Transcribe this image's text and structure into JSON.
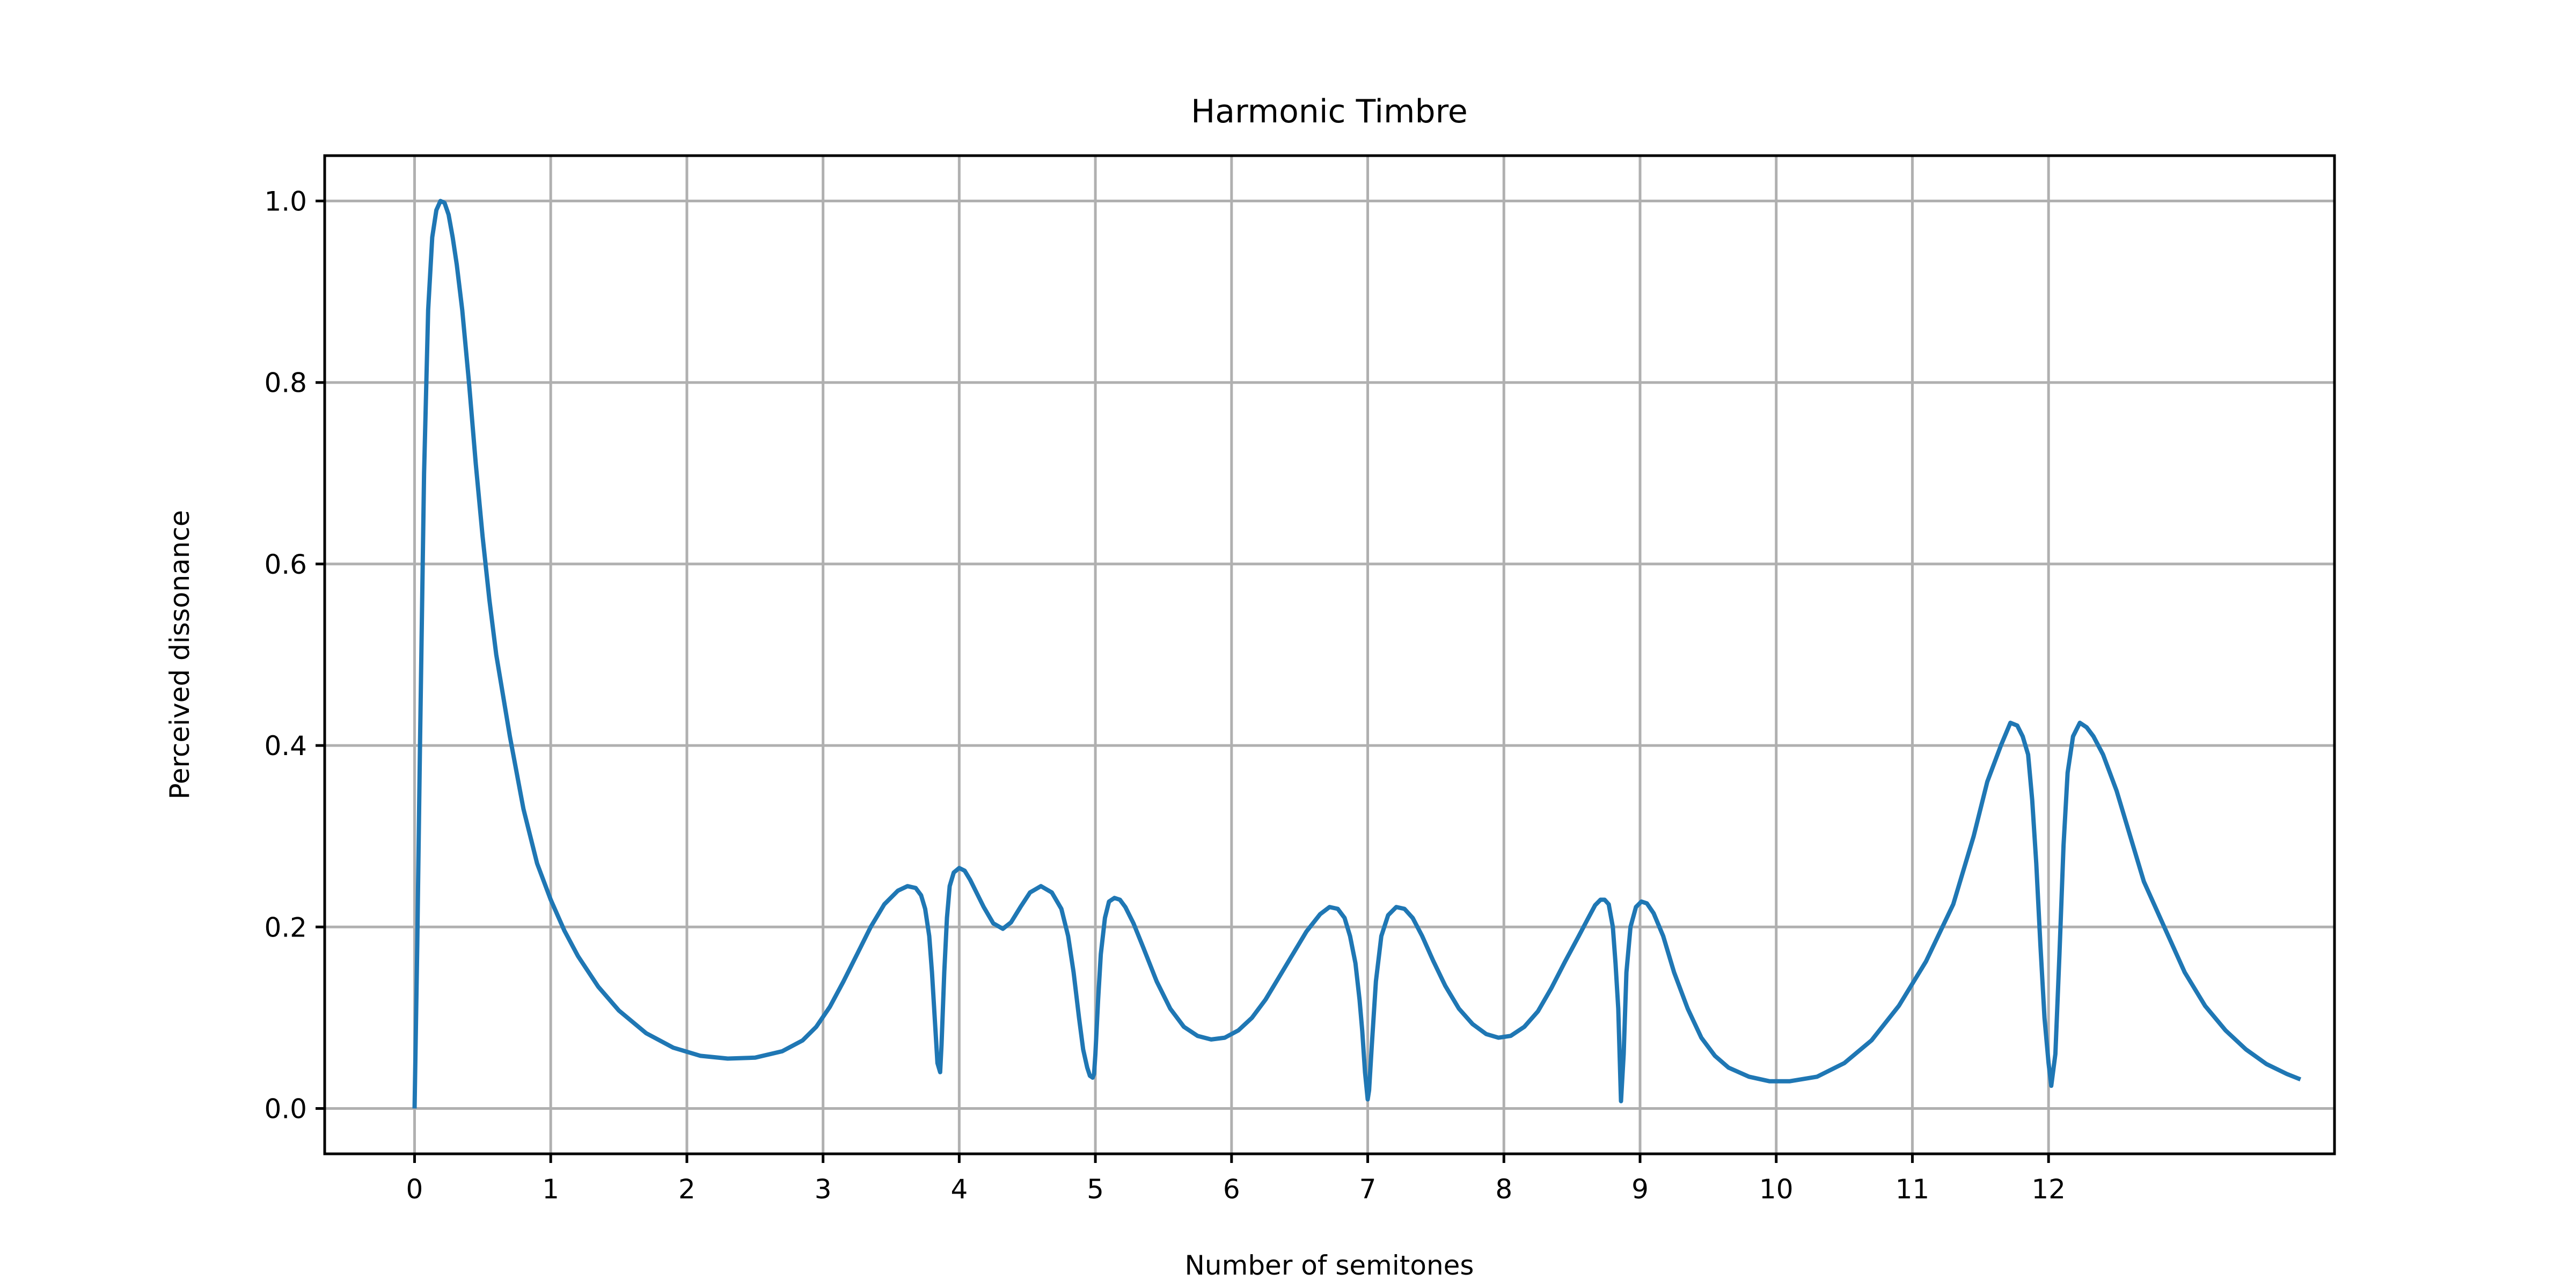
{
  "chart_data": {
    "type": "line",
    "title": "Harmonic Timbre",
    "xlabel": "Number of semitones",
    "ylabel": "Perceived dissonance",
    "xlim": [
      -0.66,
      14.1
    ],
    "ylim": [
      -0.05,
      1.05
    ],
    "x_ticks": [
      0,
      1,
      2,
      3,
      4,
      5,
      6,
      7,
      8,
      9,
      10,
      11,
      12
    ],
    "x_tick_labels": [
      "0",
      "1",
      "2",
      "3",
      "4",
      "5",
      "6",
      "7",
      "8",
      "9",
      "10",
      "11",
      "12"
    ],
    "y_ticks": [
      0.0,
      0.2,
      0.4,
      0.6,
      0.8,
      1.0
    ],
    "y_tick_labels": [
      "0.0",
      "0.2",
      "0.4",
      "0.6",
      "0.8",
      "1.0"
    ],
    "grid": true,
    "series_color": "#1f77b4",
    "series": [
      {
        "x": [
          0,
          0.02,
          0.04,
          0.07,
          0.1,
          0.13,
          0.16,
          0.19,
          0.22,
          0.25,
          0.28,
          0.31,
          0.35,
          0.4,
          0.45,
          0.5,
          0.55,
          0.6,
          0.7,
          0.8,
          0.9,
          1.0,
          1.1,
          1.2,
          1.35,
          1.5,
          1.7,
          1.9,
          2.1,
          2.3,
          2.5,
          2.7,
          2.85,
          2.95,
          3.05,
          3.15,
          3.25,
          3.35,
          3.45,
          3.55,
          3.62,
          3.68,
          3.72,
          3.75,
          3.78,
          3.8,
          3.82,
          3.84,
          3.86,
          3.87,
          3.89,
          3.91,
          3.93,
          3.96,
          4.0,
          4.04,
          4.08,
          4.12,
          4.18,
          4.25,
          4.32,
          4.38,
          4.45,
          4.52,
          4.6,
          4.68,
          4.75,
          4.8,
          4.84,
          4.88,
          4.91,
          4.94,
          4.96,
          4.98,
          4.99,
          5.0,
          5.02,
          5.04,
          5.07,
          5.1,
          5.14,
          5.18,
          5.22,
          5.28,
          5.35,
          5.45,
          5.55,
          5.65,
          5.75,
          5.85,
          5.95,
          6.05,
          6.15,
          6.25,
          6.35,
          6.45,
          6.55,
          6.65,
          6.72,
          6.78,
          6.83,
          6.87,
          6.91,
          6.94,
          6.96,
          6.98,
          7.0,
          7.01,
          7.03,
          7.06,
          7.1,
          7.15,
          7.21,
          7.27,
          7.33,
          7.4,
          7.48,
          7.57,
          7.67,
          7.77,
          7.87,
          7.96,
          8.05,
          8.15,
          8.25,
          8.35,
          8.45,
          8.55,
          8.62,
          8.67,
          8.71,
          8.74,
          8.77,
          8.8,
          8.82,
          8.84,
          8.85,
          8.86,
          8.88,
          8.9,
          8.93,
          8.97,
          9.01,
          9.05,
          9.1,
          9.17,
          9.25,
          9.35,
          9.45,
          9.55,
          9.65,
          9.8,
          9.95,
          10.1,
          10.3,
          10.5,
          10.7,
          10.9,
          11.1,
          11.3,
          11.45,
          11.55,
          11.65,
          11.72,
          11.77,
          11.81,
          11.85,
          11.88,
          11.91,
          11.94,
          11.97,
          12.0,
          12.02,
          12.05,
          12.08,
          12.11,
          12.14,
          12.18,
          12.23,
          12.28,
          12.33,
          12.4,
          12.5,
          12.6,
          12.7,
          12.85,
          13.0,
          13.15,
          13.3,
          13.45,
          13.6,
          13.75,
          13.85
        ],
        "values": [
          0.0,
          0.18,
          0.4,
          0.7,
          0.88,
          0.96,
          0.99,
          1.0,
          0.998,
          0.985,
          0.96,
          0.93,
          0.88,
          0.8,
          0.71,
          0.63,
          0.56,
          0.5,
          0.41,
          0.33,
          0.27,
          0.23,
          0.196,
          0.168,
          0.134,
          0.108,
          0.083,
          0.067,
          0.058,
          0.055,
          0.056,
          0.063,
          0.075,
          0.09,
          0.112,
          0.14,
          0.17,
          0.2,
          0.225,
          0.24,
          0.245,
          0.243,
          0.235,
          0.22,
          0.19,
          0.15,
          0.1,
          0.05,
          0.04,
          0.07,
          0.15,
          0.21,
          0.245,
          0.26,
          0.265,
          0.262,
          0.252,
          0.24,
          0.222,
          0.204,
          0.198,
          0.205,
          0.222,
          0.238,
          0.245,
          0.238,
          0.22,
          0.19,
          0.15,
          0.1,
          0.065,
          0.045,
          0.036,
          0.034,
          0.038,
          0.06,
          0.12,
          0.17,
          0.21,
          0.228,
          0.232,
          0.23,
          0.222,
          0.204,
          0.178,
          0.14,
          0.11,
          0.09,
          0.08,
          0.076,
          0.078,
          0.086,
          0.1,
          0.12,
          0.145,
          0.17,
          0.195,
          0.214,
          0.222,
          0.22,
          0.21,
          0.19,
          0.16,
          0.12,
          0.085,
          0.04,
          0.01,
          0.02,
          0.07,
          0.14,
          0.19,
          0.213,
          0.222,
          0.22,
          0.21,
          0.19,
          0.163,
          0.135,
          0.11,
          0.093,
          0.082,
          0.078,
          0.08,
          0.09,
          0.107,
          0.133,
          0.162,
          0.19,
          0.21,
          0.224,
          0.23,
          0.23,
          0.225,
          0.2,
          0.16,
          0.11,
          0.06,
          0.008,
          0.06,
          0.15,
          0.2,
          0.222,
          0.228,
          0.226,
          0.215,
          0.19,
          0.15,
          0.11,
          0.078,
          0.058,
          0.045,
          0.035,
          0.03,
          0.03,
          0.035,
          0.05,
          0.075,
          0.113,
          0.162,
          0.225,
          0.3,
          0.36,
          0.4,
          0.425,
          0.422,
          0.41,
          0.39,
          0.34,
          0.27,
          0.18,
          0.1,
          0.05,
          0.025,
          0.06,
          0.17,
          0.29,
          0.37,
          0.41,
          0.425,
          0.42,
          0.41,
          0.39,
          0.35,
          0.3,
          0.25,
          0.2,
          0.15,
          0.113,
          0.086,
          0.065,
          0.049,
          0.038,
          0.032
        ]
      }
    ]
  }
}
